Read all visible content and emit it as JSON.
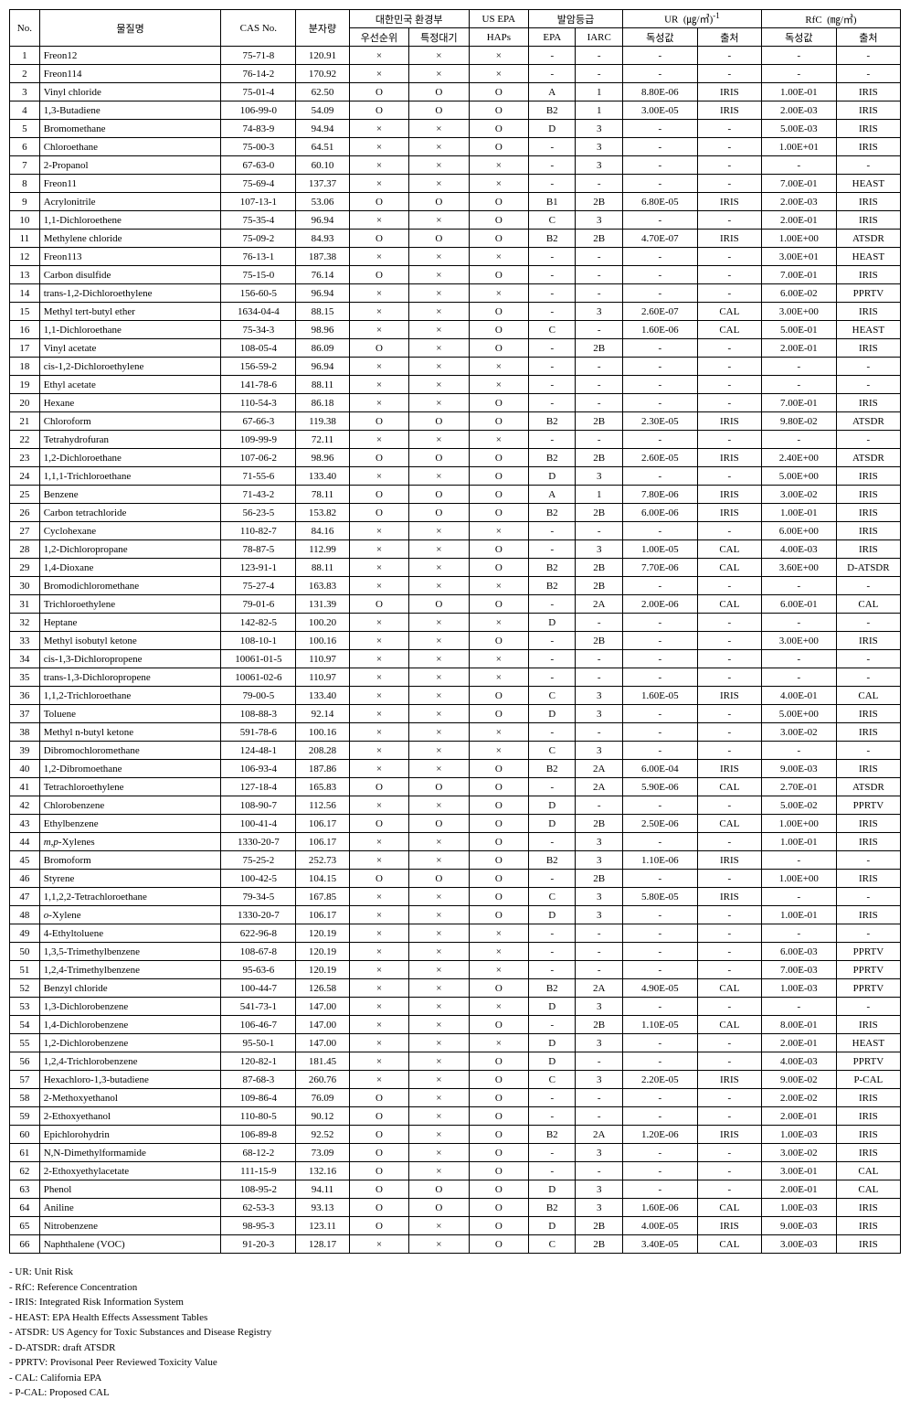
{
  "header": {
    "no": "No.",
    "name": "물질명",
    "cas": "CAS No.",
    "mw": "분자량",
    "kor_env": "대한민국 환경부",
    "us_epa": "US EPA",
    "carc": "발암등급",
    "ur_group": "UR  (㎍/㎥)⁻¹",
    "rfc_group": "RfC  (㎎/㎥)",
    "priority": "우선순위",
    "spec_air": "특정대기",
    "haps": "HAPs",
    "epa": "EPA",
    "iarc": "IARC",
    "tox_val": "독성값",
    "source": "출처"
  },
  "rows": [
    {
      "n": "1",
      "nm": "Freon12",
      "cas": "75-71-8",
      "mw": "120.91",
      "p": "×",
      "s": "×",
      "h": "×",
      "epa": "-",
      "iarc": "-",
      "uv": "-",
      "us": "-",
      "rv": "-",
      "rs": "-"
    },
    {
      "n": "2",
      "nm": "Freon114",
      "cas": "76-14-2",
      "mw": "170.92",
      "p": "×",
      "s": "×",
      "h": "×",
      "epa": "-",
      "iarc": "-",
      "uv": "-",
      "us": "-",
      "rv": "-",
      "rs": "-"
    },
    {
      "n": "3",
      "nm": "Vinyl chloride",
      "cas": "75-01-4",
      "mw": "62.50",
      "p": "O",
      "s": "O",
      "h": "O",
      "epa": "A",
      "iarc": "1",
      "uv": "8.80E-06",
      "us": "IRIS",
      "rv": "1.00E-01",
      "rs": "IRIS"
    },
    {
      "n": "4",
      "nm": "1,3-Butadiene",
      "cas": "106-99-0",
      "mw": "54.09",
      "p": "O",
      "s": "O",
      "h": "O",
      "epa": "B2",
      "iarc": "1",
      "uv": "3.00E-05",
      "us": "IRIS",
      "rv": "2.00E-03",
      "rs": "IRIS"
    },
    {
      "n": "5",
      "nm": "Bromomethane",
      "cas": "74-83-9",
      "mw": "94.94",
      "p": "×",
      "s": "×",
      "h": "O",
      "epa": "D",
      "iarc": "3",
      "uv": "-",
      "us": "-",
      "rv": "5.00E-03",
      "rs": "IRIS"
    },
    {
      "n": "6",
      "nm": "Chloroethane",
      "cas": "75-00-3",
      "mw": "64.51",
      "p": "×",
      "s": "×",
      "h": "O",
      "epa": "-",
      "iarc": "3",
      "uv": "-",
      "us": "-",
      "rv": "1.00E+01",
      "rs": "IRIS"
    },
    {
      "n": "7",
      "nm": "2-Propanol",
      "cas": "67-63-0",
      "mw": "60.10",
      "p": "×",
      "s": "×",
      "h": "×",
      "epa": "-",
      "iarc": "3",
      "uv": "-",
      "us": "-",
      "rv": "-",
      "rs": "-"
    },
    {
      "n": "8",
      "nm": "Freon11",
      "cas": "75-69-4",
      "mw": "137.37",
      "p": "×",
      "s": "×",
      "h": "×",
      "epa": "-",
      "iarc": "-",
      "uv": "-",
      "us": "-",
      "rv": "7.00E-01",
      "rs": "HEAST"
    },
    {
      "n": "9",
      "nm": "Acrylonitrile",
      "cas": "107-13-1",
      "mw": "53.06",
      "p": "O",
      "s": "O",
      "h": "O",
      "epa": "B1",
      "iarc": "2B",
      "uv": "6.80E-05",
      "us": "IRIS",
      "rv": "2.00E-03",
      "rs": "IRIS"
    },
    {
      "n": "10",
      "nm": "1,1-Dichloroethene",
      "cas": "75-35-4",
      "mw": "96.94",
      "p": "×",
      "s": "×",
      "h": "O",
      "epa": "C",
      "iarc": "3",
      "uv": "-",
      "us": "-",
      "rv": "2.00E-01",
      "rs": "IRIS"
    },
    {
      "n": "11",
      "nm": "Methylene chloride",
      "cas": "75-09-2",
      "mw": "84.93",
      "p": "O",
      "s": "O",
      "h": "O",
      "epa": "B2",
      "iarc": "2B",
      "uv": "4.70E-07",
      "us": "IRIS",
      "rv": "1.00E+00",
      "rs": "ATSDR"
    },
    {
      "n": "12",
      "nm": "Freon113",
      "cas": "76-13-1",
      "mw": "187.38",
      "p": "×",
      "s": "×",
      "h": "×",
      "epa": "-",
      "iarc": "-",
      "uv": "-",
      "us": "-",
      "rv": "3.00E+01",
      "rs": "HEAST"
    },
    {
      "n": "13",
      "nm": "Carbon disulfide",
      "cas": "75-15-0",
      "mw": "76.14",
      "p": "O",
      "s": "×",
      "h": "O",
      "epa": "-",
      "iarc": "-",
      "uv": "-",
      "us": "-",
      "rv": "7.00E-01",
      "rs": "IRIS"
    },
    {
      "n": "14",
      "nm": "trans-1,2-Dichloroethylene",
      "cas": "156-60-5",
      "mw": "96.94",
      "p": "×",
      "s": "×",
      "h": "×",
      "epa": "-",
      "iarc": "-",
      "uv": "-",
      "us": "-",
      "rv": "6.00E-02",
      "rs": "PPRTV"
    },
    {
      "n": "15",
      "nm": "Methyl tert-butyl ether",
      "cas": "1634-04-4",
      "mw": "88.15",
      "p": "×",
      "s": "×",
      "h": "O",
      "epa": "-",
      "iarc": "3",
      "uv": "2.60E-07",
      "us": "CAL",
      "rv": "3.00E+00",
      "rs": "IRIS"
    },
    {
      "n": "16",
      "nm": "1,1-Dichloroethane",
      "cas": "75-34-3",
      "mw": "98.96",
      "p": "×",
      "s": "×",
      "h": "O",
      "epa": "C",
      "iarc": "-",
      "uv": "1.60E-06",
      "us": "CAL",
      "rv": "5.00E-01",
      "rs": "HEAST"
    },
    {
      "n": "17",
      "nm": "Vinyl acetate",
      "cas": "108-05-4",
      "mw": "86.09",
      "p": "O",
      "s": "×",
      "h": "O",
      "epa": "-",
      "iarc": "2B",
      "uv": "-",
      "us": "-",
      "rv": "2.00E-01",
      "rs": "IRIS"
    },
    {
      "n": "18",
      "nm": "cis-1,2-Dichloroethylene",
      "cas": "156-59-2",
      "mw": "96.94",
      "p": "×",
      "s": "×",
      "h": "×",
      "epa": "-",
      "iarc": "-",
      "uv": "-",
      "us": "-",
      "rv": "-",
      "rs": "-"
    },
    {
      "n": "19",
      "nm": "Ethyl acetate",
      "cas": "141-78-6",
      "mw": "88.11",
      "p": "×",
      "s": "×",
      "h": "×",
      "epa": "-",
      "iarc": "-",
      "uv": "-",
      "us": "-",
      "rv": "-",
      "rs": "-"
    },
    {
      "n": "20",
      "nm": "Hexane",
      "cas": "110-54-3",
      "mw": "86.18",
      "p": "×",
      "s": "×",
      "h": "O",
      "epa": "-",
      "iarc": "-",
      "uv": "-",
      "us": "-",
      "rv": "7.00E-01",
      "rs": "IRIS"
    },
    {
      "n": "21",
      "nm": "Chloroform",
      "cas": "67-66-3",
      "mw": "119.38",
      "p": "O",
      "s": "O",
      "h": "O",
      "epa": "B2",
      "iarc": "2B",
      "uv": "2.30E-05",
      "us": "IRIS",
      "rv": "9.80E-02",
      "rs": "ATSDR"
    },
    {
      "n": "22",
      "nm": "Tetrahydrofuran",
      "cas": "109-99-9",
      "mw": "72.11",
      "p": "×",
      "s": "×",
      "h": "×",
      "epa": "-",
      "iarc": "-",
      "uv": "-",
      "us": "-",
      "rv": "-",
      "rs": "-"
    },
    {
      "n": "23",
      "nm": "1,2-Dichloroethane",
      "cas": "107-06-2",
      "mw": "98.96",
      "p": "O",
      "s": "O",
      "h": "O",
      "epa": "B2",
      "iarc": "2B",
      "uv": "2.60E-05",
      "us": "IRIS",
      "rv": "2.40E+00",
      "rs": "ATSDR"
    },
    {
      "n": "24",
      "nm": "1,1,1-Trichloroethane",
      "cas": "71-55-6",
      "mw": "133.40",
      "p": "×",
      "s": "×",
      "h": "O",
      "epa": "D",
      "iarc": "3",
      "uv": "-",
      "us": "-",
      "rv": "5.00E+00",
      "rs": "IRIS"
    },
    {
      "n": "25",
      "nm": "Benzene",
      "cas": "71-43-2",
      "mw": "78.11",
      "p": "O",
      "s": "O",
      "h": "O",
      "epa": "A",
      "iarc": "1",
      "uv": "7.80E-06",
      "us": "IRIS",
      "rv": "3.00E-02",
      "rs": "IRIS"
    },
    {
      "n": "26",
      "nm": "Carbon tetrachloride",
      "cas": "56-23-5",
      "mw": "153.82",
      "p": "O",
      "s": "O",
      "h": "O",
      "epa": "B2",
      "iarc": "2B",
      "uv": "6.00E-06",
      "us": "IRIS",
      "rv": "1.00E-01",
      "rs": "IRIS"
    },
    {
      "n": "27",
      "nm": "Cyclohexane",
      "cas": "110-82-7",
      "mw": "84.16",
      "p": "×",
      "s": "×",
      "h": "×",
      "epa": "-",
      "iarc": "-",
      "uv": "-",
      "us": "-",
      "rv": "6.00E+00",
      "rs": "IRIS"
    },
    {
      "n": "28",
      "nm": "1,2-Dichloropropane",
      "cas": "78-87-5",
      "mw": "112.99",
      "p": "×",
      "s": "×",
      "h": "O",
      "epa": "-",
      "iarc": "3",
      "uv": "1.00E-05",
      "us": "CAL",
      "rv": "4.00E-03",
      "rs": "IRIS"
    },
    {
      "n": "29",
      "nm": "1,4-Dioxane",
      "cas": "123-91-1",
      "mw": "88.11",
      "p": "×",
      "s": "×",
      "h": "O",
      "epa": "B2",
      "iarc": "2B",
      "uv": "7.70E-06",
      "us": "CAL",
      "rv": "3.60E+00",
      "rs": "D-ATSDR"
    },
    {
      "n": "30",
      "nm": "Bromodichloromethane",
      "cas": "75-27-4",
      "mw": "163.83",
      "p": "×",
      "s": "×",
      "h": "×",
      "epa": "B2",
      "iarc": "2B",
      "uv": "-",
      "us": "-",
      "rv": "-",
      "rs": "-"
    },
    {
      "n": "31",
      "nm": "Trichloroethylene",
      "cas": "79-01-6",
      "mw": "131.39",
      "p": "O",
      "s": "O",
      "h": "O",
      "epa": "-",
      "iarc": "2A",
      "uv": "2.00E-06",
      "us": "CAL",
      "rv": "6.00E-01",
      "rs": "CAL"
    },
    {
      "n": "32",
      "nm": "Heptane",
      "cas": "142-82-5",
      "mw": "100.20",
      "p": "×",
      "s": "×",
      "h": "×",
      "epa": "D",
      "iarc": "-",
      "uv": "-",
      "us": "-",
      "rv": "-",
      "rs": "-"
    },
    {
      "n": "33",
      "nm": "Methyl isobutyl ketone",
      "cas": "108-10-1",
      "mw": "100.16",
      "p": "×",
      "s": "×",
      "h": "O",
      "epa": "-",
      "iarc": "2B",
      "uv": "-",
      "us": "-",
      "rv": "3.00E+00",
      "rs": "IRIS"
    },
    {
      "n": "34",
      "nm": "cis-1,3-Dichloropropene",
      "cas": "10061-01-5",
      "mw": "110.97",
      "p": "×",
      "s": "×",
      "h": "×",
      "epa": "-",
      "iarc": "-",
      "uv": "-",
      "us": "-",
      "rv": "-",
      "rs": "-"
    },
    {
      "n": "35",
      "nm": "trans-1,3-Dichloropropene",
      "cas": "10061-02-6",
      "mw": "110.97",
      "p": "×",
      "s": "×",
      "h": "×",
      "epa": "-",
      "iarc": "-",
      "uv": "-",
      "us": "-",
      "rv": "-",
      "rs": "-"
    },
    {
      "n": "36",
      "nm": "1,1,2-Trichloroethane",
      "cas": "79-00-5",
      "mw": "133.40",
      "p": "×",
      "s": "×",
      "h": "O",
      "epa": "C",
      "iarc": "3",
      "uv": "1.60E-05",
      "us": "IRIS",
      "rv": "4.00E-01",
      "rs": "CAL"
    },
    {
      "n": "37",
      "nm": "Toluene",
      "cas": "108-88-3",
      "mw": "92.14",
      "p": "×",
      "s": "×",
      "h": "O",
      "epa": "D",
      "iarc": "3",
      "uv": "-",
      "us": "-",
      "rv": "5.00E+00",
      "rs": "IRIS"
    },
    {
      "n": "38",
      "nm": "Methyl n-butyl ketone",
      "cas": "591-78-6",
      "mw": "100.16",
      "p": "×",
      "s": "×",
      "h": "×",
      "epa": "-",
      "iarc": "-",
      "uv": "-",
      "us": "-",
      "rv": "3.00E-02",
      "rs": "IRIS"
    },
    {
      "n": "39",
      "nm": "Dibromochloromethane",
      "cas": "124-48-1",
      "mw": "208.28",
      "p": "×",
      "s": "×",
      "h": "×",
      "epa": "C",
      "iarc": "3",
      "uv": "-",
      "us": "-",
      "rv": "-",
      "rs": "-"
    },
    {
      "n": "40",
      "nm": "1,2-Dibromoethane",
      "cas": "106-93-4",
      "mw": "187.86",
      "p": "×",
      "s": "×",
      "h": "O",
      "epa": "B2",
      "iarc": "2A",
      "uv": "6.00E-04",
      "us": "IRIS",
      "rv": "9.00E-03",
      "rs": "IRIS"
    },
    {
      "n": "41",
      "nm": "Tetrachloroethylene",
      "cas": "127-18-4",
      "mw": "165.83",
      "p": "O",
      "s": "O",
      "h": "O",
      "epa": "-",
      "iarc": "2A",
      "uv": "5.90E-06",
      "us": "CAL",
      "rv": "2.70E-01",
      "rs": "ATSDR"
    },
    {
      "n": "42",
      "nm": "Chlorobenzene",
      "cas": "108-90-7",
      "mw": "112.56",
      "p": "×",
      "s": "×",
      "h": "O",
      "epa": "D",
      "iarc": "-",
      "uv": "-",
      "us": "-",
      "rv": "5.00E-02",
      "rs": "PPRTV"
    },
    {
      "n": "43",
      "nm": "Ethylbenzene",
      "cas": "100-41-4",
      "mw": "106.17",
      "p": "O",
      "s": "O",
      "h": "O",
      "epa": "D",
      "iarc": "2B",
      "uv": "2.50E-06",
      "us": "CAL",
      "rv": "1.00E+00",
      "rs": "IRIS"
    },
    {
      "n": "44",
      "nm": "m,p-Xylenes",
      "it": true,
      "cas": "1330-20-7",
      "mw": "106.17",
      "p": "×",
      "s": "×",
      "h": "O",
      "epa": "-",
      "iarc": "3",
      "uv": "-",
      "us": "-",
      "rv": "1.00E-01",
      "rs": "IRIS"
    },
    {
      "n": "45",
      "nm": "Bromoform",
      "cas": "75-25-2",
      "mw": "252.73",
      "p": "×",
      "s": "×",
      "h": "O",
      "epa": "B2",
      "iarc": "3",
      "uv": "1.10E-06",
      "us": "IRIS",
      "rv": "-",
      "rs": "-"
    },
    {
      "n": "46",
      "nm": "Styrene",
      "cas": "100-42-5",
      "mw": "104.15",
      "p": "O",
      "s": "O",
      "h": "O",
      "epa": "-",
      "iarc": "2B",
      "uv": "-",
      "us": "-",
      "rv": "1.00E+00",
      "rs": "IRIS"
    },
    {
      "n": "47",
      "nm": "1,1,2,2-Tetrachloroethane",
      "cas": "79-34-5",
      "mw": "167.85",
      "p": "×",
      "s": "×",
      "h": "O",
      "epa": "C",
      "iarc": "3",
      "uv": "5.80E-05",
      "us": "IRIS",
      "rv": "-",
      "rs": "-"
    },
    {
      "n": "48",
      "nm": "o-Xylene",
      "it": true,
      "cas": "1330-20-7",
      "mw": "106.17",
      "p": "×",
      "s": "×",
      "h": "O",
      "epa": "D",
      "iarc": "3",
      "uv": "-",
      "us": "-",
      "rv": "1.00E-01",
      "rs": "IRIS"
    },
    {
      "n": "49",
      "nm": "4-Ethyltoluene",
      "cas": "622-96-8",
      "mw": "120.19",
      "p": "×",
      "s": "×",
      "h": "×",
      "epa": "-",
      "iarc": "-",
      "uv": "-",
      "us": "-",
      "rv": "-",
      "rs": "-"
    },
    {
      "n": "50",
      "nm": "1,3,5-Trimethylbenzene",
      "cas": "108-67-8",
      "mw": "120.19",
      "p": "×",
      "s": "×",
      "h": "×",
      "epa": "-",
      "iarc": "-",
      "uv": "-",
      "us": "-",
      "rv": "6.00E-03",
      "rs": "PPRTV"
    },
    {
      "n": "51",
      "nm": "1,2,4-Trimethylbenzene",
      "cas": "95-63-6",
      "mw": "120.19",
      "p": "×",
      "s": "×",
      "h": "×",
      "epa": "-",
      "iarc": "-",
      "uv": "-",
      "us": "-",
      "rv": "7.00E-03",
      "rs": "PPRTV"
    },
    {
      "n": "52",
      "nm": "Benzyl chloride",
      "cas": "100-44-7",
      "mw": "126.58",
      "p": "×",
      "s": "×",
      "h": "O",
      "epa": "B2",
      "iarc": "2A",
      "uv": "4.90E-05",
      "us": "CAL",
      "rv": "1.00E-03",
      "rs": "PPRTV"
    },
    {
      "n": "53",
      "nm": "1,3-Dichlorobenzene",
      "cas": "541-73-1",
      "mw": "147.00",
      "p": "×",
      "s": "×",
      "h": "×",
      "epa": "D",
      "iarc": "3",
      "uv": "-",
      "us": "-",
      "rv": "-",
      "rs": "-"
    },
    {
      "n": "54",
      "nm": "1,4-Dichlorobenzene",
      "cas": "106-46-7",
      "mw": "147.00",
      "p": "×",
      "s": "×",
      "h": "O",
      "epa": "-",
      "iarc": "2B",
      "uv": "1.10E-05",
      "us": "CAL",
      "rv": "8.00E-01",
      "rs": "IRIS"
    },
    {
      "n": "55",
      "nm": "1,2-Dichlorobenzene",
      "cas": "95-50-1",
      "mw": "147.00",
      "p": "×",
      "s": "×",
      "h": "×",
      "epa": "D",
      "iarc": "3",
      "uv": "-",
      "us": "-",
      "rv": "2.00E-01",
      "rs": "HEAST"
    },
    {
      "n": "56",
      "nm": "1,2,4-Trichlorobenzene",
      "cas": "120-82-1",
      "mw": "181.45",
      "p": "×",
      "s": "×",
      "h": "O",
      "epa": "D",
      "iarc": "-",
      "uv": "-",
      "us": "-",
      "rv": "4.00E-03",
      "rs": "PPRTV"
    },
    {
      "n": "57",
      "nm": "Hexachloro-1,3-butadiene",
      "cas": "87-68-3",
      "mw": "260.76",
      "p": "×",
      "s": "×",
      "h": "O",
      "epa": "C",
      "iarc": "3",
      "uv": "2.20E-05",
      "us": "IRIS",
      "rv": "9.00E-02",
      "rs": "P-CAL"
    },
    {
      "n": "58",
      "nm": "2-Methoxyethanol",
      "cas": "109-86-4",
      "mw": "76.09",
      "p": "O",
      "s": "×",
      "h": "O",
      "epa": "-",
      "iarc": "-",
      "uv": "-",
      "us": "-",
      "rv": "2.00E-02",
      "rs": "IRIS"
    },
    {
      "n": "59",
      "nm": "2-Ethoxyethanol",
      "cas": "110-80-5",
      "mw": "90.12",
      "p": "O",
      "s": "×",
      "h": "O",
      "epa": "-",
      "iarc": "-",
      "uv": "-",
      "us": "-",
      "rv": "2.00E-01",
      "rs": "IRIS"
    },
    {
      "n": "60",
      "nm": "Epichlorohydrin",
      "cas": "106-89-8",
      "mw": "92.52",
      "p": "O",
      "s": "×",
      "h": "O",
      "epa": "B2",
      "iarc": "2A",
      "uv": "1.20E-06",
      "us": "IRIS",
      "rv": "1.00E-03",
      "rs": "IRIS"
    },
    {
      "n": "61",
      "nm": "N,N-Dimethylformamide",
      "cas": "68-12-2",
      "mw": "73.09",
      "p": "O",
      "s": "×",
      "h": "O",
      "epa": "-",
      "iarc": "3",
      "uv": "-",
      "us": "-",
      "rv": "3.00E-02",
      "rs": "IRIS"
    },
    {
      "n": "62",
      "nm": "2-Ethoxyethylacetate",
      "cas": "111-15-9",
      "mw": "132.16",
      "p": "O",
      "s": "×",
      "h": "O",
      "epa": "-",
      "iarc": "-",
      "uv": "-",
      "us": "-",
      "rv": "3.00E-01",
      "rs": "CAL"
    },
    {
      "n": "63",
      "nm": "Phenol",
      "cas": "108-95-2",
      "mw": "94.11",
      "p": "O",
      "s": "O",
      "h": "O",
      "epa": "D",
      "iarc": "3",
      "uv": "-",
      "us": "-",
      "rv": "2.00E-01",
      "rs": "CAL"
    },
    {
      "n": "64",
      "nm": "Aniline",
      "cas": "62-53-3",
      "mw": "93.13",
      "p": "O",
      "s": "O",
      "h": "O",
      "epa": "B2",
      "iarc": "3",
      "uv": "1.60E-06",
      "us": "CAL",
      "rv": "1.00E-03",
      "rs": "IRIS"
    },
    {
      "n": "65",
      "nm": "Nitrobenzene",
      "cas": "98-95-3",
      "mw": "123.11",
      "p": "O",
      "s": "×",
      "h": "O",
      "epa": "D",
      "iarc": "2B",
      "uv": "4.00E-05",
      "us": "IRIS",
      "rv": "9.00E-03",
      "rs": "IRIS"
    },
    {
      "n": "66",
      "nm": "Naphthalene (VOC)",
      "cas": "91-20-3",
      "mw": "128.17",
      "p": "×",
      "s": "×",
      "h": "O",
      "epa": "C",
      "iarc": "2B",
      "uv": "3.40E-05",
      "us": "CAL",
      "rv": "3.00E-03",
      "rs": "IRIS"
    }
  ],
  "footnotes": [
    "UR: Unit Risk",
    "RfC: Reference Concentration",
    "IRIS: Integrated Risk Information System",
    "HEAST: EPA Health Effects Assessment Tables",
    "ATSDR: US Agency for Toxic Substances and Disease Registry",
    "D-ATSDR: draft ATSDR",
    "PPRTV: Provisonal Peer Reviewed Toxicity Value",
    "CAL: California EPA",
    "P-CAL: Proposed CAL"
  ]
}
